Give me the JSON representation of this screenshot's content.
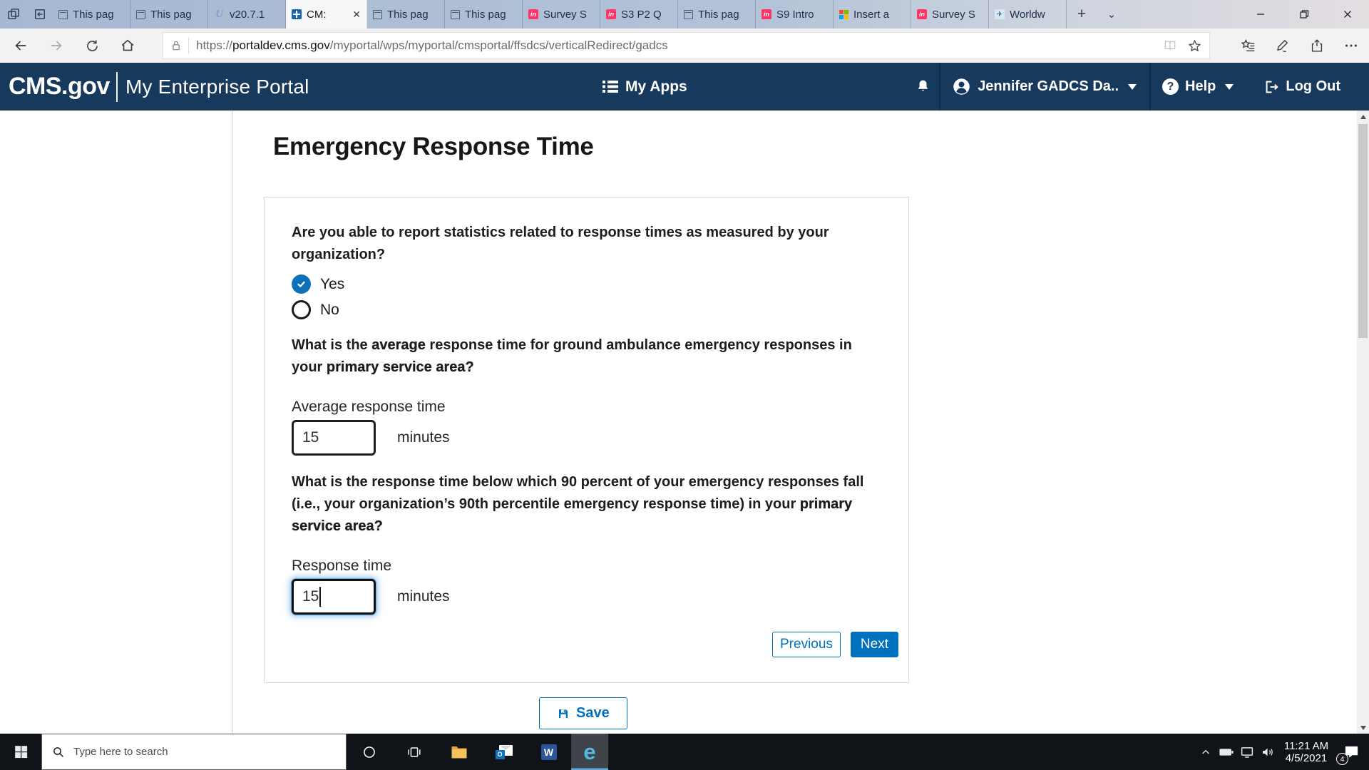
{
  "browser": {
    "tab_close_glyph": "✕",
    "new_tab_glyph": "+",
    "tab_menu_glyph": "⌄",
    "icon_glyphs": {
      "u": "U",
      "in": "in",
      "plane": "✈"
    },
    "tabs": [
      {
        "icon": "page",
        "label": "This pag"
      },
      {
        "icon": "page",
        "label": "This pag"
      },
      {
        "icon": "u",
        "label": "v20.7.1"
      },
      {
        "icon": "cms",
        "label": "CM:",
        "active": true
      },
      {
        "icon": "page",
        "label": "This pag"
      },
      {
        "icon": "page",
        "label": "This pag"
      },
      {
        "icon": "in",
        "label": "Survey S"
      },
      {
        "icon": "in",
        "label": "S3 P2 Q"
      },
      {
        "icon": "page",
        "label": "This pag"
      },
      {
        "icon": "in",
        "label": "S9 Intro"
      },
      {
        "icon": "ms",
        "label": "Insert a"
      },
      {
        "icon": "in",
        "label": "Survey S"
      },
      {
        "icon": "plane",
        "label": "Worldw"
      }
    ],
    "address": {
      "scheme": "https://",
      "domain": "portaldev.cms.gov",
      "path": "/myportal/wps/myportal/cmsportal/ffsdcs/verticalRedirect/gadcs"
    }
  },
  "portal": {
    "brand": "CMS.gov",
    "product": "My Enterprise Portal",
    "my_apps": "My Apps",
    "user": "Jennifer GADCS Da..",
    "help": "Help",
    "help_glyph": "?",
    "log_out": "Log Out"
  },
  "page": {
    "title": "Emergency Response Time",
    "q1": {
      "parts": [
        {
          "t": "Are you able to report statistics related to response times as measured by your"
        },
        {
          "b": true
        },
        {
          "t": "organization?"
        }
      ]
    },
    "options": {
      "yes": "Yes",
      "no": "No"
    },
    "q2": {
      "parts": [
        {
          "t": "What is the "
        },
        {
          "t": "average",
          "s": true
        },
        {
          "t": " response time for ground ambulance emergency responses in"
        },
        {
          "b": true
        },
        {
          "t": "your "
        },
        {
          "t": "primary service area?",
          "s": true
        }
      ]
    },
    "average": {
      "label": "Average response time",
      "value": "15",
      "unit": "minutes"
    },
    "q3": {
      "parts": [
        {
          "t": "What is the response time below which 90 percent of your emergency responses fall"
        },
        {
          "b": true
        },
        {
          "t": "(i.e., your organization’s 90th percentile emergency response time) in your "
        },
        {
          "t": "primary",
          "s": true
        },
        {
          "b": true
        },
        {
          "t": "service area?",
          "s": true
        }
      ]
    },
    "p90": {
      "label": "Response time",
      "value": "15",
      "unit": "minutes"
    },
    "buttons": {
      "previous": "Previous",
      "next": "Next",
      "save": "Save"
    }
  },
  "taskbar": {
    "search_placeholder": "Type here to search",
    "time": "11:21 AM",
    "date": "4/5/2021",
    "notification_count": "4",
    "word_glyph": "W",
    "outlook_glyph": "O",
    "edge_glyph": "e"
  },
  "colors": {
    "accent_blue": "#0071bc",
    "header_navy": "#17395c",
    "invision_pink": "#ff3366"
  }
}
